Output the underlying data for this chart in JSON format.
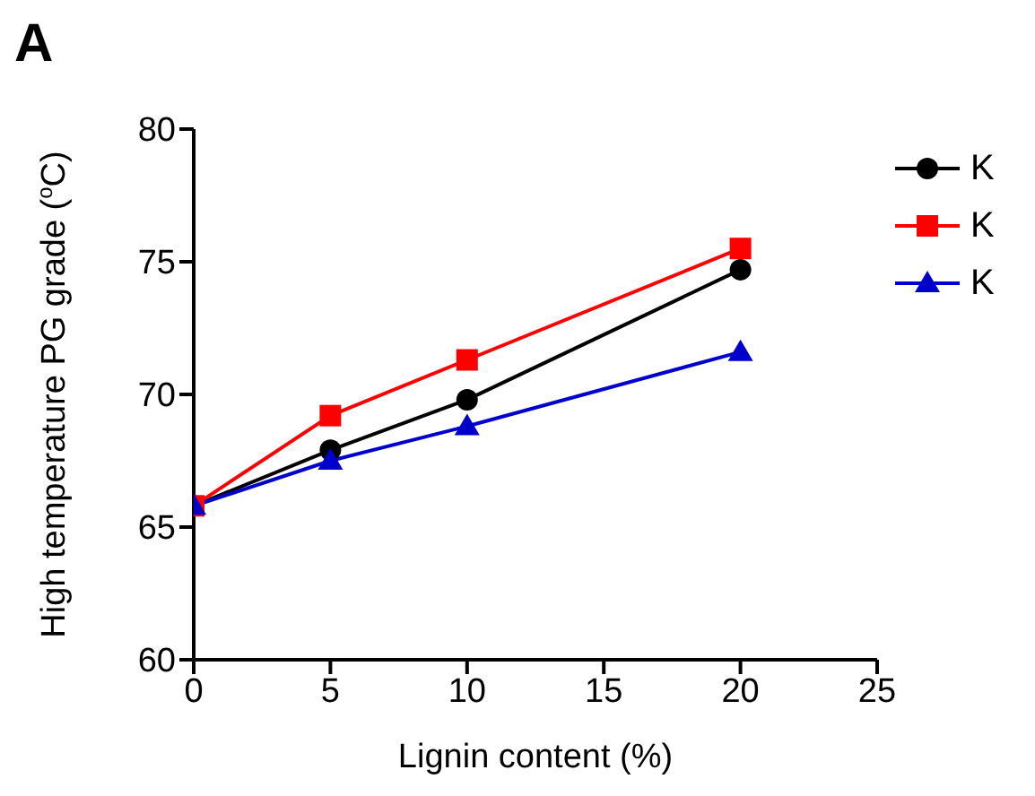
{
  "chart_data": {
    "type": "line",
    "title": "A",
    "xlabel": "Lignin content (%)",
    "ylabel": "High temperature PG grade ($^{o}$C)",
    "x": [
      0,
      5,
      10,
      20
    ],
    "series": [
      {
        "name": "K",
        "color": "#000000",
        "marker": "circle",
        "values": [
          65.8,
          67.9,
          69.8,
          74.7
        ]
      },
      {
        "name": "K",
        "color": "#ff0000",
        "marker": "square",
        "values": [
          65.8,
          69.2,
          71.3,
          75.5
        ]
      },
      {
        "name": "K",
        "color": "#0000cc",
        "marker": "triangle",
        "values": [
          65.8,
          67.5,
          68.8,
          71.6
        ]
      }
    ],
    "xlim": [
      0,
      25
    ],
    "xticks": [
      0,
      5,
      10,
      15,
      20,
      25
    ],
    "ylim": [
      60,
      80
    ],
    "yticks": [
      60,
      65,
      70,
      75,
      80
    ],
    "grid": false,
    "legend": "top right",
    "line_style": "solid"
  }
}
